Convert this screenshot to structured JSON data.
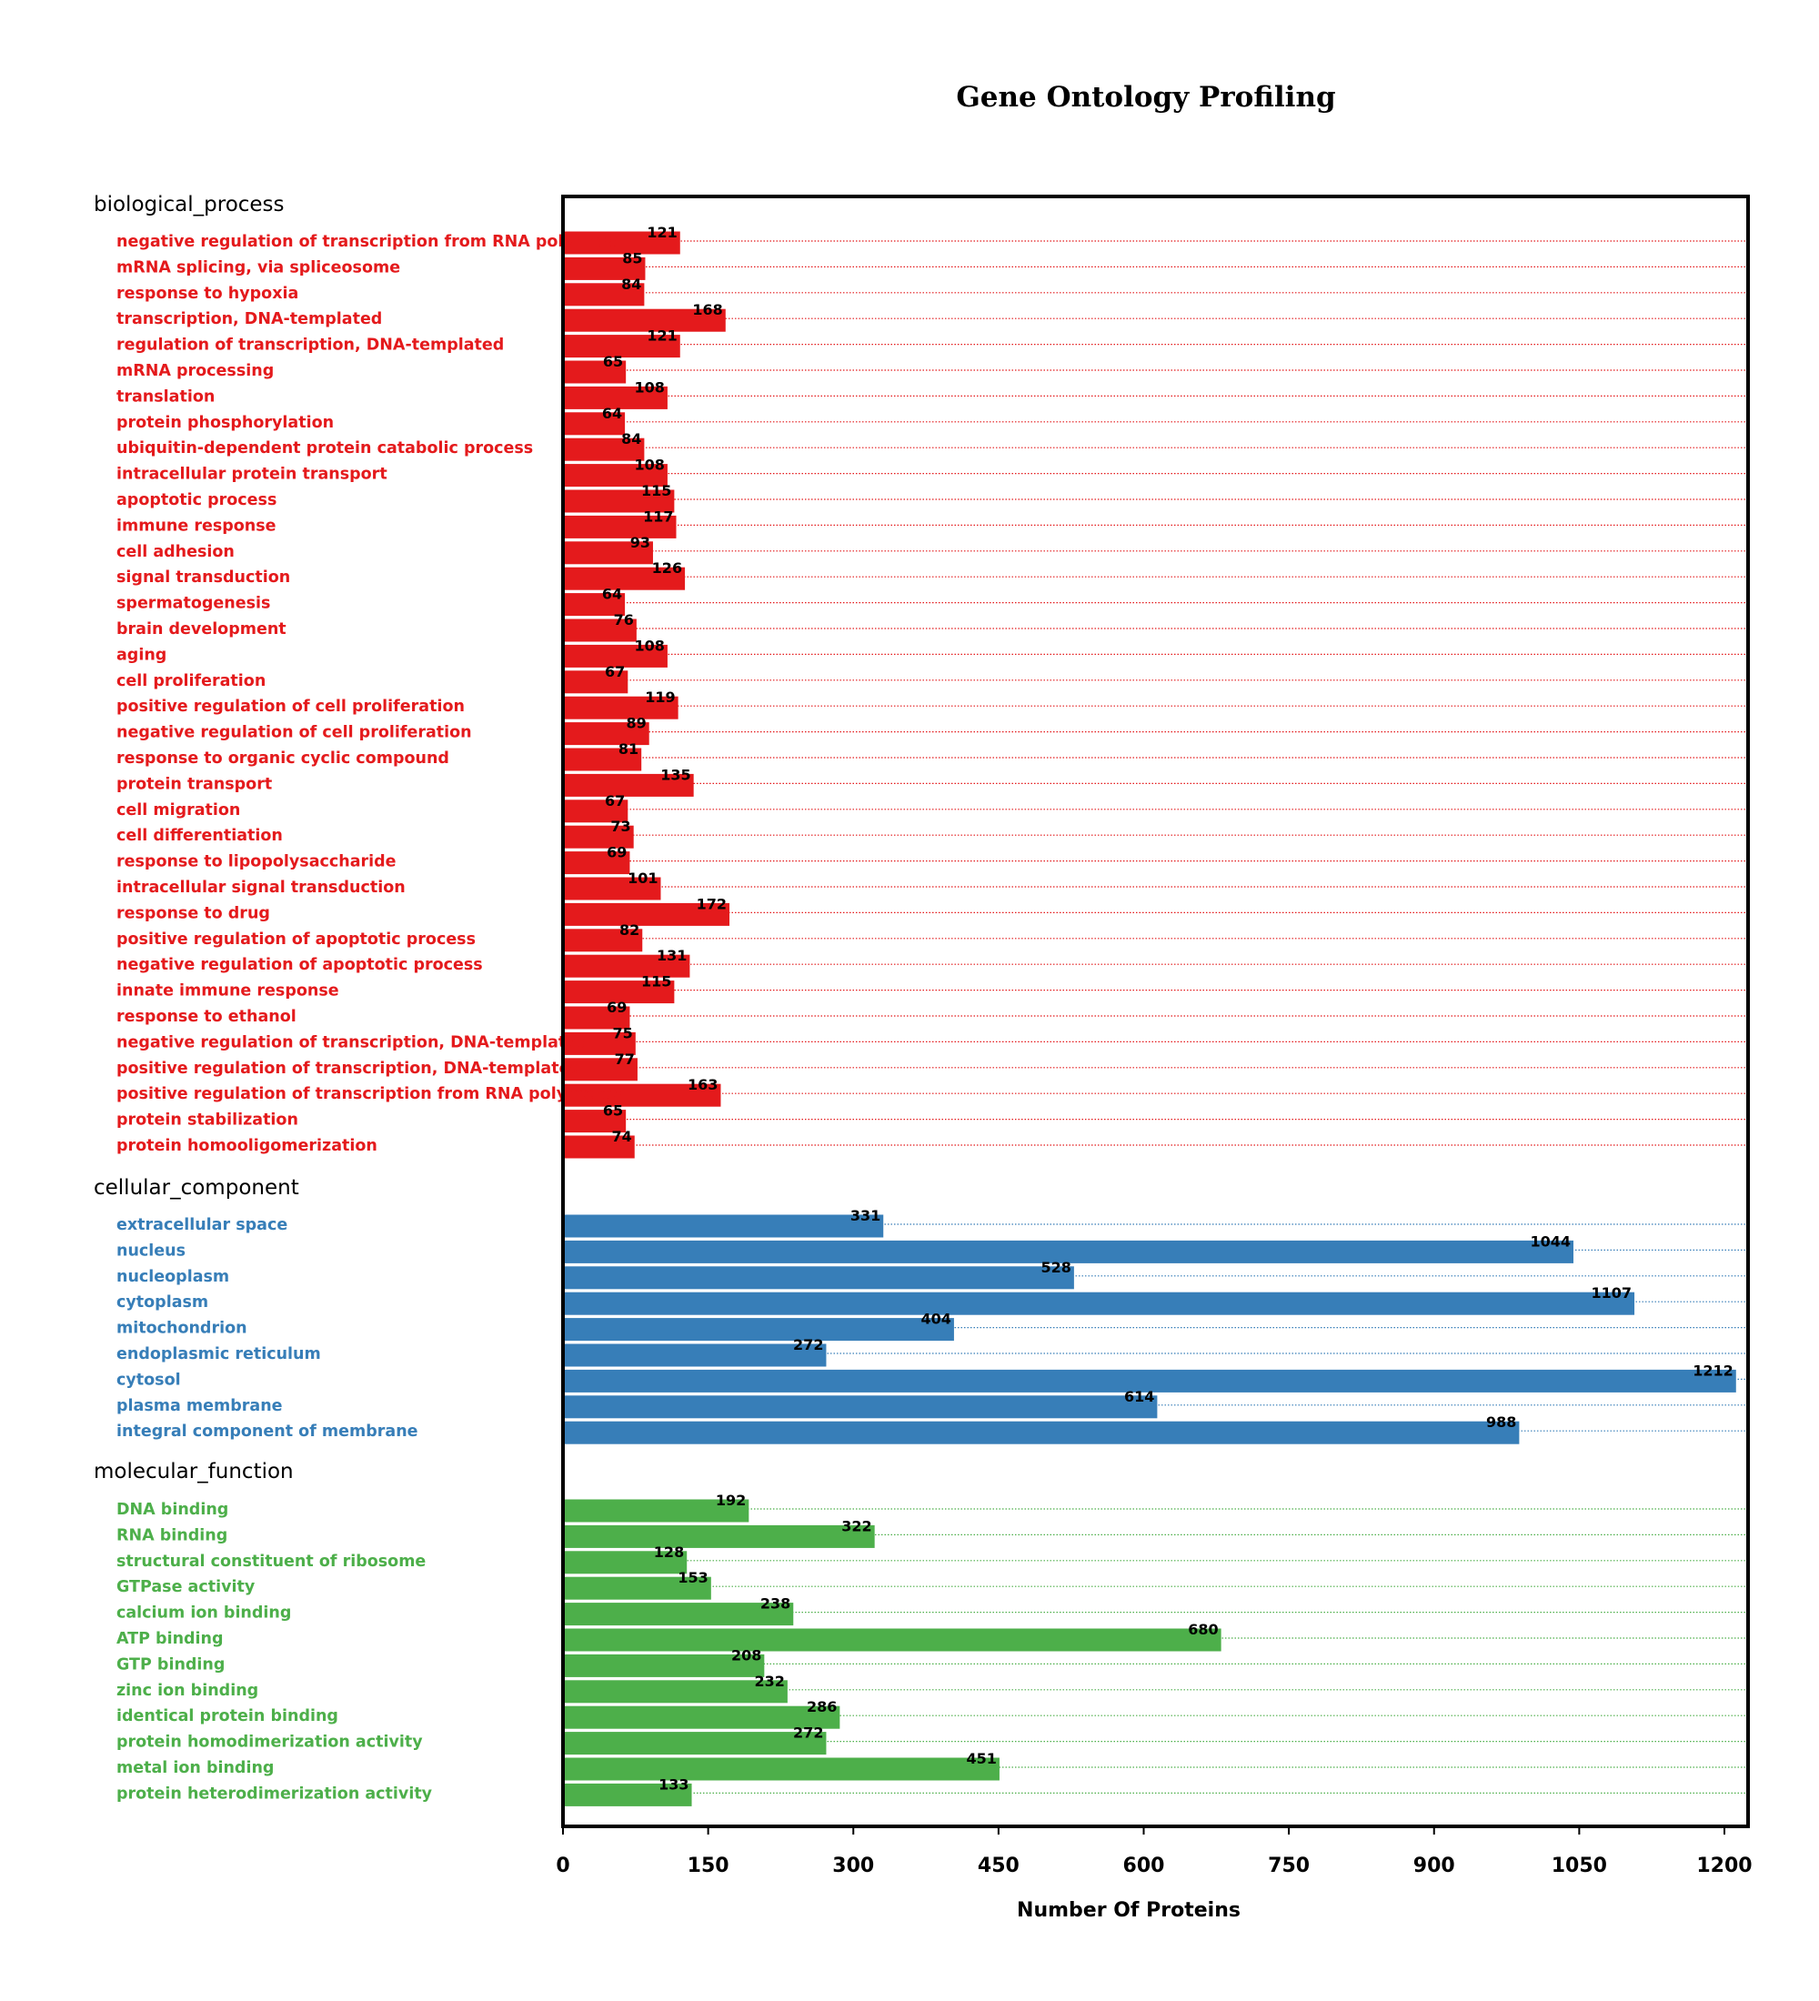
{
  "chart_data": {
    "type": "bar",
    "orientation": "horizontal",
    "title": "Gene Ontology Profiling",
    "xlabel": "Number Of Proteins",
    "xlim": [
      0,
      1200
    ],
    "xticks": [
      0,
      150,
      300,
      450,
      600,
      750,
      900,
      1050,
      1200
    ],
    "grid": "dotted line per category",
    "groups": [
      {
        "name": "biological_process",
        "color": "#e41a1c",
        "categories": [
          "negative regulation of transcription from RNA polymera",
          "mRNA splicing, via spliceosome",
          "response to hypoxia",
          "transcription, DNA-templated",
          "regulation of transcription, DNA-templated",
          "mRNA processing",
          "translation",
          "protein phosphorylation",
          "ubiquitin-dependent protein catabolic process",
          "intracellular protein transport",
          "apoptotic process",
          "immune response",
          "cell adhesion",
          "signal transduction",
          "spermatogenesis",
          "brain development",
          "aging",
          "cell proliferation",
          "positive regulation of cell proliferation",
          "negative regulation of cell proliferation",
          "response to organic cyclic compound",
          "protein transport",
          "cell migration",
          "cell differentiation",
          "response to lipopolysaccharide",
          "intracellular signal transduction",
          "response to drug",
          "positive regulation of apoptotic process",
          "negative regulation of apoptotic process",
          "innate immune response",
          "response to ethanol",
          "negative regulation of transcription, DNA-templated",
          "positive regulation of transcription, DNA-templated",
          "positive regulation of transcription from RNA polymeras",
          "protein stabilization",
          "protein homooligomerization"
        ],
        "values": [
          121,
          85,
          84,
          168,
          121,
          65,
          108,
          64,
          84,
          108,
          115,
          117,
          93,
          126,
          64,
          76,
          108,
          67,
          119,
          89,
          81,
          135,
          67,
          73,
          69,
          101,
          172,
          82,
          131,
          115,
          69,
          75,
          77,
          163,
          65,
          74
        ]
      },
      {
        "name": "cellular_component",
        "color": "#377eb8",
        "categories": [
          "extracellular space",
          "nucleus",
          "nucleoplasm",
          "cytoplasm",
          "mitochondrion",
          "endoplasmic reticulum",
          "cytosol",
          "plasma membrane",
          "integral component of membrane"
        ],
        "values": [
          331,
          1044,
          528,
          1107,
          404,
          272,
          1212,
          614,
          988
        ]
      },
      {
        "name": "molecular_function",
        "color": "#4daf4a",
        "categories": [
          "DNA binding",
          "RNA binding",
          "structural constituent of ribosome",
          "GTPase activity",
          "calcium ion binding",
          "ATP binding",
          "GTP binding",
          "zinc ion binding",
          "identical protein binding",
          "protein homodimerization activity",
          "metal ion binding",
          "protein heterodimerization activity"
        ],
        "values": [
          192,
          322,
          128,
          153,
          238,
          680,
          208,
          232,
          286,
          272,
          451,
          133
        ]
      }
    ]
  }
}
